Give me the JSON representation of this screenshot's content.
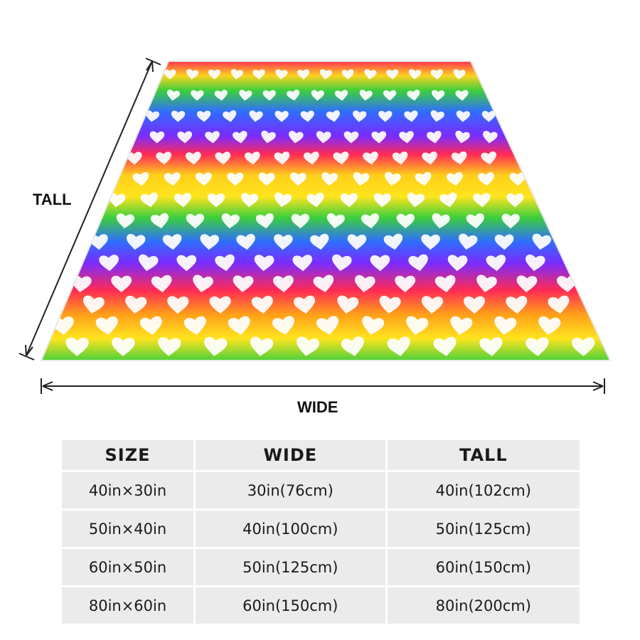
{
  "dimension_labels": {
    "tall": "TALL",
    "wide": "WIDE"
  },
  "blanket": {
    "pattern": "rainbow horizontal stripes with white hand-drawn hearts",
    "icon": "heart-icon",
    "stripe_colors": [
      "#ff2a55",
      "#ffd21e",
      "#3ccf3c",
      "#7a2cff"
    ]
  },
  "table": {
    "headers": [
      "SIZE",
      "WIDE",
      "TALL"
    ],
    "rows": [
      [
        "40in×30in",
        "30in(76cm)",
        "40in(102cm)"
      ],
      [
        "50in×40in",
        "40in(100cm)",
        "50in(125cm)"
      ],
      [
        "60in×50in",
        "50in(125cm)",
        "60in(150cm)"
      ],
      [
        "80in×60in",
        "60in(150cm)",
        "80in(200cm)"
      ]
    ]
  }
}
